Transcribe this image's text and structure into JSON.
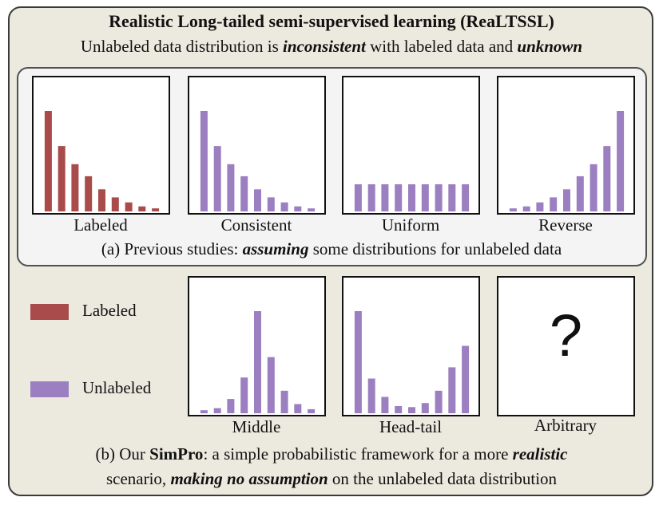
{
  "title": "Realistic Long-tailed semi-supervised learning (ReaLTSSL)",
  "subtitle": {
    "pre": "Unlabeled data distribution is ",
    "em1": "inconsistent",
    "mid": " with labeled data and ",
    "em2": "unknown"
  },
  "colors": {
    "labeled": "#a94b4b",
    "unlabeled": "#9b7fc0"
  },
  "legend": {
    "labeled": "Labeled",
    "unlabeled": "Unlabeled"
  },
  "panels": [
    {
      "label": "Labeled",
      "series": "labeled",
      "values": [
        100,
        65,
        47,
        35,
        22,
        14,
        9,
        5,
        3
      ]
    },
    {
      "label": "Consistent",
      "series": "unlabeled",
      "values": [
        100,
        65,
        47,
        35,
        22,
        14,
        9,
        5,
        3
      ]
    },
    {
      "label": "Uniform",
      "series": "unlabeled",
      "values": [
        27,
        27,
        27,
        27,
        27,
        27,
        27,
        27,
        27
      ]
    },
    {
      "label": "Reverse",
      "series": "unlabeled",
      "values": [
        3,
        5,
        9,
        14,
        22,
        35,
        47,
        65,
        100
      ]
    },
    {
      "label": "Middle",
      "series": "unlabeled",
      "values": [
        3,
        5,
        14,
        35,
        100,
        55,
        22,
        9,
        4
      ]
    },
    {
      "label": "Head-tail",
      "series": "unlabeled",
      "values": [
        100,
        34,
        16,
        7,
        6,
        10,
        22,
        45,
        66
      ]
    },
    {
      "label": "Arbitrary",
      "series": "none",
      "values": [],
      "symbol": "?"
    }
  ],
  "caption_a": {
    "pre": "(a) Previous studies: ",
    "em": "assuming",
    "post": " some distributions for unlabeled data"
  },
  "caption_b": {
    "pre": "(b) Our ",
    "name": "SimPro",
    "mid": ": a simple probabilistic framework for a more ",
    "em": "realistic",
    "line2_pre": "scenario, ",
    "em2": "making no assumption",
    "post": " on the unlabeled data distribution"
  }
}
